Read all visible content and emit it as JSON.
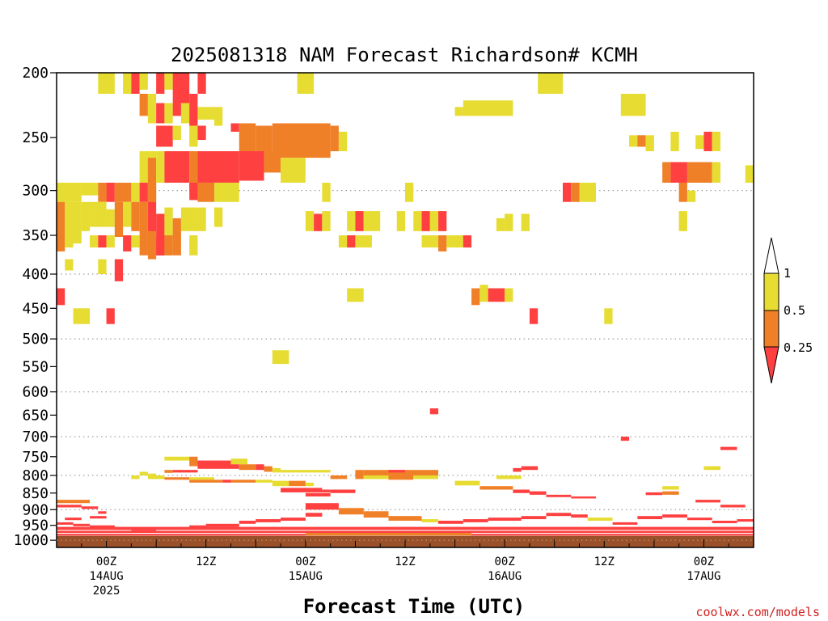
{
  "chart_data": {
    "type": "heatmap",
    "title": "2025081318 NAM Forecast Richardson# KCMH",
    "xlabel": "Forecast Time (UTC)",
    "ylabel": "",
    "credit": "coolwx.com/models",
    "x_units": "hours since 2025-08-13 18Z",
    "xlim": [
      0,
      84
    ],
    "ylim": [
      1025,
      200
    ],
    "y_scale": "log-pressure",
    "y_ticks": [
      200,
      250,
      300,
      350,
      400,
      450,
      500,
      550,
      600,
      650,
      700,
      750,
      800,
      850,
      900,
      950,
      1000
    ],
    "y_tick_labels": [
      "200",
      "250",
      "300",
      "350",
      "400",
      "450",
      "500",
      "550",
      "600",
      "650",
      "700",
      "750",
      "800",
      "850",
      "900",
      "950",
      "1000"
    ],
    "gridlines_at": [
      300,
      400,
      500,
      600,
      700,
      800,
      900,
      1000
    ],
    "x_ticks": [
      {
        "hour": 6,
        "labels": [
          "00Z",
          "14AUG",
          "2025"
        ]
      },
      {
        "hour": 18,
        "labels": [
          "12Z"
        ]
      },
      {
        "hour": 30,
        "labels": [
          "00Z",
          "15AUG"
        ]
      },
      {
        "hour": 42,
        "labels": [
          "12Z"
        ]
      },
      {
        "hour": 54,
        "labels": [
          "00Z",
          "16AUG"
        ]
      },
      {
        "hour": 66,
        "labels": [
          "12Z"
        ]
      },
      {
        "hour": 78,
        "labels": [
          "00Z",
          "17AUG"
        ]
      }
    ],
    "colors": {
      "lt_0_25": "#ff4040",
      "0_25_to_0_5": "#f08028",
      "0_5_to_1": "#e6dc32",
      "ground": "#9a5028",
      "grid": "#a0a0a0"
    },
    "colorbar": {
      "labels": [
        "1",
        "0.5",
        "0.25"
      ],
      "levels": [
        1,
        0.5,
        0.25
      ]
    },
    "ground_pressure": 985,
    "cells": [
      [
        5,
        7,
        200,
        215,
        "y"
      ],
      [
        8,
        9,
        200,
        215,
        "y"
      ],
      [
        9,
        10,
        200,
        215,
        "r"
      ],
      [
        10,
        11,
        200,
        212,
        "y"
      ],
      [
        12,
        13,
        200,
        215,
        "r"
      ],
      [
        13,
        14,
        200,
        212,
        "y"
      ],
      [
        14,
        16,
        200,
        222,
        "r"
      ],
      [
        17,
        18,
        200,
        215,
        "r"
      ],
      [
        29,
        31,
        200,
        215,
        "y"
      ],
      [
        58,
        61,
        200,
        215,
        "y"
      ],
      [
        10,
        11,
        215,
        232,
        "o"
      ],
      [
        11,
        12,
        215,
        238,
        "y"
      ],
      [
        12,
        13,
        222,
        238,
        "r"
      ],
      [
        13,
        14,
        222,
        238,
        "y"
      ],
      [
        14,
        15,
        222,
        232,
        "r"
      ],
      [
        15,
        16,
        222,
        238,
        "y"
      ],
      [
        16,
        17,
        215,
        240,
        "r"
      ],
      [
        17,
        19,
        225,
        235,
        "y"
      ],
      [
        19,
        20,
        225,
        240,
        "y"
      ],
      [
        48,
        49,
        225,
        232,
        "y"
      ],
      [
        49,
        55,
        220,
        232,
        "y"
      ],
      [
        68,
        71,
        215,
        232,
        "y"
      ],
      [
        12,
        14,
        240,
        258,
        "r"
      ],
      [
        14,
        15,
        240,
        252,
        "y"
      ],
      [
        16,
        17,
        240,
        258,
        "y"
      ],
      [
        17,
        18,
        240,
        252,
        "r"
      ],
      [
        21,
        22,
        238,
        245,
        "r"
      ],
      [
        22,
        24,
        238,
        262,
        "o"
      ],
      [
        24,
        26,
        240,
        262,
        "o"
      ],
      [
        26,
        33,
        238,
        268,
        "o"
      ],
      [
        33,
        34,
        240,
        262,
        "o"
      ],
      [
        34,
        35,
        245,
        262,
        "y"
      ],
      [
        69,
        70,
        248,
        258,
        "y"
      ],
      [
        70,
        71,
        248,
        258,
        "o"
      ],
      [
        71,
        72,
        248,
        262,
        "y"
      ],
      [
        74,
        75,
        245,
        262,
        "y"
      ],
      [
        77,
        78,
        248,
        260,
        "y"
      ],
      [
        78,
        79,
        245,
        262,
        "r"
      ],
      [
        79,
        80,
        245,
        262,
        "y"
      ],
      [
        10,
        12,
        262,
        292,
        "y"
      ],
      [
        11,
        12,
        268,
        312,
        "o"
      ],
      [
        12,
        13,
        262,
        292,
        "y"
      ],
      [
        13,
        16,
        262,
        292,
        "r"
      ],
      [
        16,
        17,
        262,
        300,
        "o"
      ],
      [
        17,
        22,
        262,
        292,
        "r"
      ],
      [
        22,
        25,
        262,
        290,
        "r"
      ],
      [
        25,
        27,
        262,
        282,
        "o"
      ],
      [
        27,
        30,
        268,
        292,
        "y"
      ],
      [
        73,
        74,
        272,
        292,
        "o"
      ],
      [
        74,
        76,
        272,
        292,
        "r"
      ],
      [
        76,
        79,
        272,
        292,
        "o"
      ],
      [
        79,
        80,
        272,
        292,
        "y"
      ],
      [
        83,
        84,
        275,
        292,
        "y"
      ],
      [
        0,
        3,
        292,
        312,
        "y"
      ],
      [
        3,
        5,
        292,
        305,
        "y"
      ],
      [
        5,
        6,
        292,
        312,
        "o"
      ],
      [
        6,
        7,
        292,
        312,
        "r"
      ],
      [
        7,
        9,
        292,
        312,
        "o"
      ],
      [
        9,
        10,
        292,
        312,
        "y"
      ],
      [
        10,
        11,
        292,
        312,
        "r"
      ],
      [
        11,
        12,
        292,
        312,
        "o"
      ],
      [
        16,
        17,
        292,
        310,
        "r"
      ],
      [
        17,
        19,
        292,
        312,
        "o"
      ],
      [
        19,
        22,
        292,
        312,
        "y"
      ],
      [
        32,
        33,
        292,
        312,
        "y"
      ],
      [
        42,
        43,
        292,
        312,
        "y"
      ],
      [
        61,
        62,
        292,
        312,
        "r"
      ],
      [
        62,
        63,
        292,
        312,
        "o"
      ],
      [
        63,
        65,
        292,
        312,
        "y"
      ],
      [
        75,
        76,
        292,
        312,
        "o"
      ],
      [
        76,
        77,
        300,
        312,
        "y"
      ],
      [
        0,
        1,
        312,
        370,
        "o"
      ],
      [
        1,
        3,
        312,
        352,
        "y"
      ],
      [
        3,
        4,
        312,
        345,
        "y"
      ],
      [
        4,
        6,
        312,
        340,
        "y"
      ],
      [
        6,
        7,
        320,
        340,
        "y"
      ],
      [
        7,
        8,
        312,
        352,
        "o"
      ],
      [
        8,
        9,
        312,
        340,
        "y"
      ],
      [
        9,
        10,
        312,
        345,
        "o"
      ],
      [
        10,
        11,
        312,
        375,
        "o"
      ],
      [
        11,
        12,
        312,
        375,
        "r"
      ],
      [
        12,
        13,
        325,
        375,
        "r"
      ],
      [
        13,
        14,
        318,
        375,
        "y"
      ],
      [
        14,
        15,
        330,
        375,
        "o"
      ],
      [
        15,
        17,
        318,
        345,
        "y"
      ],
      [
        17,
        18,
        318,
        345,
        "y"
      ],
      [
        19,
        20,
        318,
        340,
        "y"
      ],
      [
        30,
        31,
        322,
        345,
        "y"
      ],
      [
        31,
        32,
        325,
        345,
        "r"
      ],
      [
        32,
        33,
        322,
        345,
        "y"
      ],
      [
        35,
        36,
        322,
        345,
        "y"
      ],
      [
        36,
        37,
        322,
        345,
        "r"
      ],
      [
        37,
        39,
        322,
        345,
        "y"
      ],
      [
        41,
        42,
        322,
        345,
        "y"
      ],
      [
        43,
        44,
        322,
        345,
        "y"
      ],
      [
        44,
        45,
        322,
        345,
        "r"
      ],
      [
        45,
        46,
        322,
        345,
        "y"
      ],
      [
        46,
        47,
        322,
        345,
        "r"
      ],
      [
        53,
        54,
        330,
        345,
        "y"
      ],
      [
        54,
        55,
        325,
        345,
        "y"
      ],
      [
        56,
        57,
        325,
        345,
        "y"
      ],
      [
        75,
        76,
        322,
        345,
        "y"
      ],
      [
        1,
        2,
        350,
        365,
        "y"
      ],
      [
        2,
        3,
        350,
        360,
        "y"
      ],
      [
        4,
        5,
        350,
        365,
        "y"
      ],
      [
        5,
        6,
        350,
        365,
        "r"
      ],
      [
        6,
        7,
        350,
        365,
        "y"
      ],
      [
        8,
        9,
        350,
        370,
        "r"
      ],
      [
        9,
        10,
        350,
        365,
        "y"
      ],
      [
        11,
        12,
        345,
        380,
        "o"
      ],
      [
        12,
        13,
        350,
        375,
        "r"
      ],
      [
        13,
        14,
        350,
        375,
        "o"
      ],
      [
        16,
        17,
        350,
        375,
        "y"
      ],
      [
        34,
        35,
        350,
        365,
        "y"
      ],
      [
        35,
        36,
        350,
        365,
        "r"
      ],
      [
        36,
        38,
        350,
        365,
        "y"
      ],
      [
        44,
        46,
        350,
        365,
        "y"
      ],
      [
        46,
        47,
        350,
        370,
        "o"
      ],
      [
        47,
        49,
        350,
        365,
        "y"
      ],
      [
        49,
        50,
        350,
        365,
        "r"
      ],
      [
        1,
        2,
        380,
        395,
        "y"
      ],
      [
        5,
        6,
        380,
        400,
        "y"
      ],
      [
        7,
        8,
        380,
        410,
        "r"
      ],
      [
        35,
        37,
        420,
        440,
        "y"
      ],
      [
        50,
        51,
        420,
        445,
        "o"
      ],
      [
        51,
        52,
        415,
        440,
        "y"
      ],
      [
        52,
        54,
        420,
        440,
        "r"
      ],
      [
        54,
        55,
        420,
        440,
        "y"
      ],
      [
        0,
        1,
        420,
        445,
        "r"
      ],
      [
        2,
        4,
        450,
        475,
        "y"
      ],
      [
        6,
        7,
        450,
        475,
        "r"
      ],
      [
        57,
        58,
        450,
        475,
        "r"
      ],
      [
        66,
        67,
        450,
        475,
        "y"
      ],
      [
        26,
        28,
        520,
        545,
        "y"
      ],
      [
        45,
        46,
        635,
        648,
        "r"
      ],
      [
        68,
        69,
        700,
        710,
        "r"
      ],
      [
        80,
        82,
        725,
        733,
        "r"
      ],
      [
        13,
        16,
        750,
        760,
        "y"
      ],
      [
        16,
        17,
        750,
        775,
        "o"
      ],
      [
        17,
        21,
        760,
        782,
        "r"
      ],
      [
        21,
        23,
        755,
        770,
        "y"
      ],
      [
        21,
        22,
        770,
        782,
        "r"
      ],
      [
        22,
        24,
        770,
        785,
        "o"
      ],
      [
        24,
        25,
        770,
        785,
        "r"
      ],
      [
        25,
        26,
        775,
        790,
        "o"
      ],
      [
        13,
        14,
        785,
        793,
        "o"
      ],
      [
        14,
        17,
        785,
        792,
        "r"
      ],
      [
        26,
        27,
        780,
        792,
        "y"
      ],
      [
        27,
        33,
        785,
        792,
        "y"
      ],
      [
        10,
        11,
        790,
        800,
        "y"
      ],
      [
        11,
        12,
        795,
        805,
        "y"
      ],
      [
        9,
        10,
        800,
        810,
        "y"
      ],
      [
        11,
        13,
        800,
        810,
        "y"
      ],
      [
        36,
        37,
        785,
        810,
        "o"
      ],
      [
        37,
        46,
        785,
        800,
        "o"
      ],
      [
        40,
        42,
        785,
        792,
        "r"
      ],
      [
        37,
        40,
        800,
        810,
        "y"
      ],
      [
        40,
        43,
        800,
        812,
        "o"
      ],
      [
        43,
        46,
        800,
        810,
        "y"
      ],
      [
        33,
        35,
        800,
        810,
        "o"
      ],
      [
        53,
        56,
        800,
        810,
        "y"
      ],
      [
        55,
        56,
        780,
        790,
        "r"
      ],
      [
        56,
        58,
        775,
        785,
        "r"
      ],
      [
        78,
        80,
        775,
        785,
        "y"
      ],
      [
        13,
        16,
        805,
        812,
        "o"
      ],
      [
        16,
        19,
        805,
        812,
        "y"
      ],
      [
        16,
        20,
        812,
        820,
        "o"
      ],
      [
        20,
        21,
        812,
        820,
        "r"
      ],
      [
        21,
        24,
        812,
        820,
        "o"
      ],
      [
        24,
        26,
        812,
        820,
        "y"
      ],
      [
        27,
        32,
        835,
        848,
        "r"
      ],
      [
        32,
        33,
        840,
        848,
        "r"
      ],
      [
        33,
        36,
        840,
        850,
        "r"
      ],
      [
        30,
        33,
        850,
        860,
        "r"
      ],
      [
        26,
        28,
        815,
        830,
        "y"
      ],
      [
        28,
        30,
        815,
        830,
        "o"
      ],
      [
        30,
        31,
        820,
        830,
        "y"
      ],
      [
        48,
        51,
        815,
        828,
        "y"
      ],
      [
        51,
        55,
        830,
        840,
        "o"
      ],
      [
        55,
        57,
        840,
        850,
        "r"
      ],
      [
        57,
        59,
        845,
        855,
        "r"
      ],
      [
        59,
        62,
        855,
        862,
        "r"
      ],
      [
        62,
        65,
        860,
        866,
        "r"
      ],
      [
        71,
        73,
        848,
        856,
        "r"
      ],
      [
        73,
        75,
        845,
        855,
        "o"
      ],
      [
        73,
        75,
        830,
        840,
        "y"
      ],
      [
        77,
        80,
        870,
        878,
        "r"
      ],
      [
        80,
        83,
        885,
        893,
        "r"
      ],
      [
        0,
        4,
        870,
        880,
        "o"
      ],
      [
        0,
        3,
        885,
        893,
        "r"
      ],
      [
        3,
        5,
        890,
        898,
        "r"
      ],
      [
        5,
        6,
        905,
        913,
        "r"
      ],
      [
        4,
        6,
        920,
        928,
        "r"
      ],
      [
        1,
        3,
        925,
        933,
        "r"
      ],
      [
        0,
        2,
        940,
        948,
        "r"
      ],
      [
        2,
        4,
        945,
        953,
        "r"
      ],
      [
        4,
        7,
        950,
        958,
        "r"
      ],
      [
        7,
        9,
        960,
        965,
        "o"
      ],
      [
        9,
        12,
        965,
        970,
        "r"
      ],
      [
        16,
        18,
        950,
        958,
        "r"
      ],
      [
        18,
        22,
        945,
        955,
        "r"
      ],
      [
        22,
        24,
        935,
        945,
        "r"
      ],
      [
        24,
        27,
        930,
        940,
        "r"
      ],
      [
        27,
        30,
        925,
        935,
        "r"
      ],
      [
        30,
        32,
        910,
        922,
        "r"
      ],
      [
        30,
        34,
        880,
        900,
        "r"
      ],
      [
        34,
        37,
        895,
        915,
        "o"
      ],
      [
        37,
        40,
        905,
        925,
        "o"
      ],
      [
        40,
        44,
        920,
        935,
        "o"
      ],
      [
        44,
        46,
        930,
        940,
        "y"
      ],
      [
        46,
        49,
        935,
        945,
        "r"
      ],
      [
        49,
        52,
        930,
        940,
        "r"
      ],
      [
        52,
        56,
        925,
        935,
        "r"
      ],
      [
        56,
        59,
        920,
        930,
        "r"
      ],
      [
        59,
        62,
        910,
        920,
        "r"
      ],
      [
        62,
        64,
        915,
        925,
        "r"
      ],
      [
        64,
        67,
        925,
        935,
        "y"
      ],
      [
        67,
        70,
        940,
        948,
        "r"
      ],
      [
        70,
        73,
        920,
        930,
        "r"
      ],
      [
        73,
        76,
        915,
        925,
        "r"
      ],
      [
        76,
        79,
        925,
        933,
        "r"
      ],
      [
        79,
        82,
        935,
        943,
        "r"
      ],
      [
        82,
        84,
        930,
        938,
        "r"
      ],
      [
        0,
        84,
        955,
        965,
        "r"
      ],
      [
        0,
        84,
        968,
        975,
        "r"
      ],
      [
        0,
        30,
        978,
        984,
        "r"
      ],
      [
        30,
        50,
        975,
        984,
        "o"
      ],
      [
        50,
        84,
        978,
        984,
        "r"
      ]
    ]
  }
}
